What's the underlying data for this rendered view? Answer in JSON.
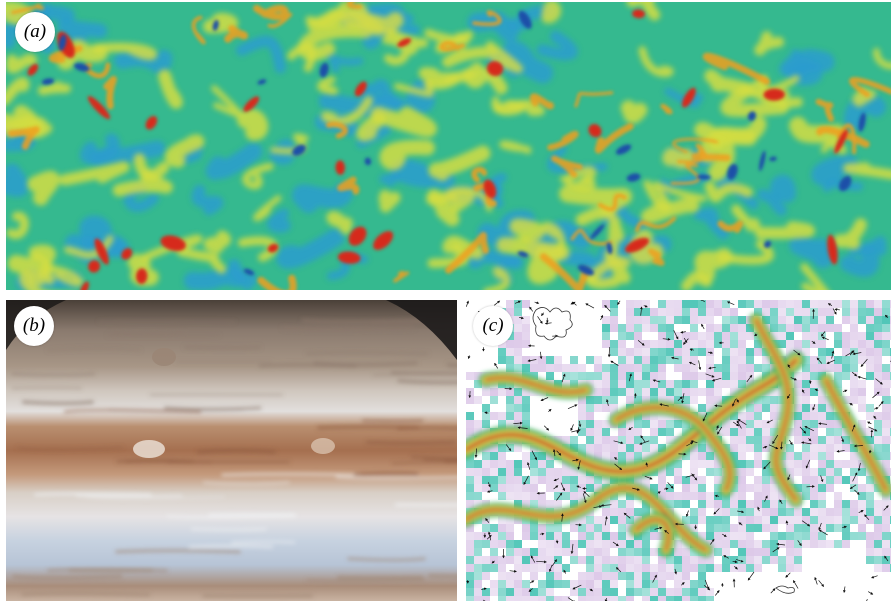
{
  "panels": {
    "a": {
      "label": "(a)",
      "description_tag": "turbulence-simulation"
    },
    "b": {
      "label": "(b)",
      "description_tag": "jupiter-bands"
    },
    "c": {
      "label": "(c)",
      "description_tag": "ocean-velocity-field"
    }
  },
  "colors": {
    "turb_base": "#2db48c",
    "turb_blue": "#2a9ad6",
    "turb_deep_blue": "#1f4fa8",
    "turb_yellow": "#e6e23a",
    "turb_orange": "#f0a020",
    "turb_red": "#d62a1a",
    "jupiter_dark": "#2b2624",
    "jupiter_tan": "#b79278",
    "jupiter_brown": "#9a6a4e",
    "jupiter_white": "#d8dde4",
    "jupiter_blue": "#a9b8cc",
    "field_lilac": "#d9c3e6",
    "field_teal": "#3fc0b0",
    "field_green": "#2fae5a",
    "field_yellow": "#e8d94a",
    "field_red": "#c8281e"
  }
}
